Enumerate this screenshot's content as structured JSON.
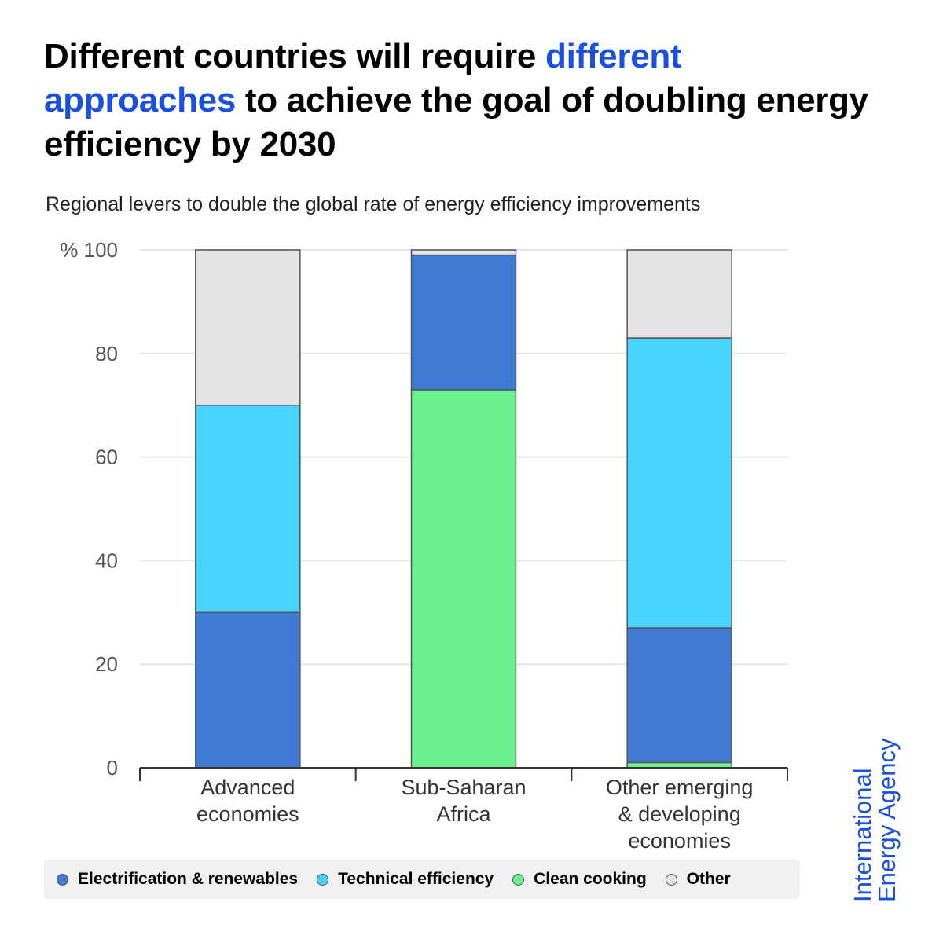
{
  "header": {
    "title_part1": "Different countries will require ",
    "title_highlight": "different approaches",
    "title_part2": " to achieve the goal of doubling energy efficiency by 2030",
    "subtitle": "Regional levers to double the global rate of energy efficiency improvements"
  },
  "brand": {
    "line1": "International",
    "line2": "Energy Agency",
    "color": "#1b4fe0"
  },
  "chart_data": {
    "type": "bar",
    "stacked": true,
    "title": "Regional levers to double the global rate of energy efficiency improvements",
    "ylabel": "%",
    "ylim": [
      0,
      100
    ],
    "yticks": [
      0,
      20,
      40,
      60,
      80,
      100
    ],
    "ytick_labels": [
      "0",
      "20",
      "40",
      "60",
      "80",
      "% 100"
    ],
    "grid": true,
    "legend_position": "bottom",
    "categories": [
      [
        "Advanced",
        "economies"
      ],
      [
        "Sub-Saharan",
        "Africa"
      ],
      [
        "Other emerging",
        "& developing",
        "economies"
      ]
    ],
    "series": [
      {
        "name": "Clean cooking",
        "color": "#6af08f",
        "values": [
          0,
          73,
          1
        ]
      },
      {
        "name": "Electrification & renewables",
        "color": "#3f7bd4",
        "values": [
          30,
          26,
          26
        ]
      },
      {
        "name": "Technical efficiency",
        "color": "#48d4fc",
        "values": [
          40,
          0,
          56
        ]
      },
      {
        "name": "Other",
        "color": "#e4e4e4",
        "values": [
          30,
          1,
          17
        ]
      }
    ],
    "legend_order": [
      "Electrification & renewables",
      "Technical efficiency",
      "Clean cooking",
      "Other"
    ]
  }
}
